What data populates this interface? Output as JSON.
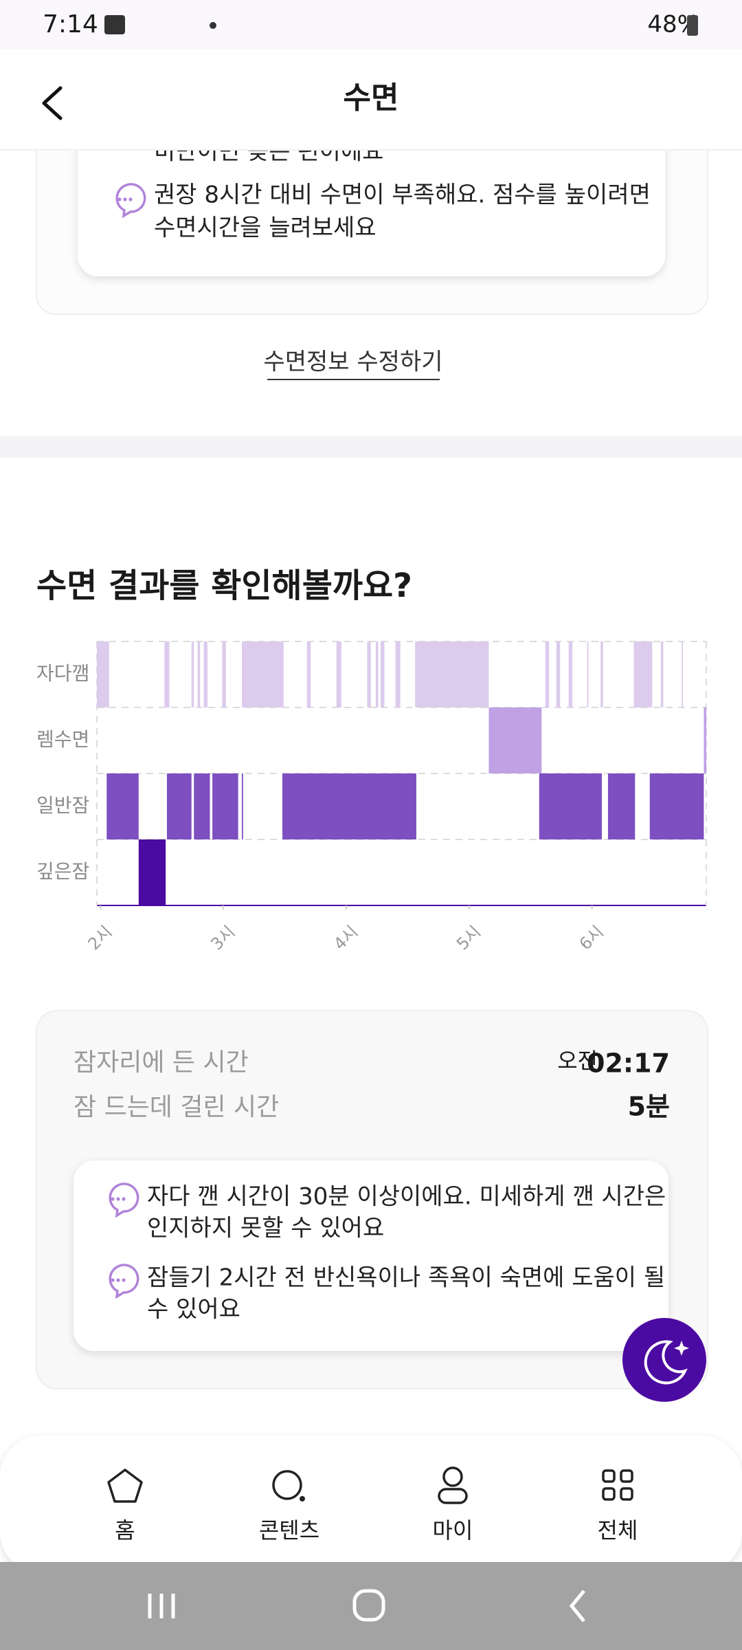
{
  "status_bar": {
    "time": "7:14",
    "battery": "48%"
  },
  "header": {
    "title": "수면"
  },
  "top_card": {
    "cut_text": "비만이면 늦은 편이에요",
    "tip": {
      "lines": [
        "권장 8시간 대비 수면이 부족해요. 점수를 높이려면",
        "수면시간을 늘려보세요"
      ]
    }
  },
  "edit_link": "수면정보 수정하기",
  "section_title": "수면 결과를 확인해볼까요?",
  "chart_data": {
    "type": "hypnogram",
    "xlim": [
      1.97,
      6.93
    ],
    "xticks": [
      {
        "value": 2,
        "label": "2시"
      },
      {
        "value": 3,
        "label": "3시"
      },
      {
        "value": 4,
        "label": "4시"
      },
      {
        "value": 5,
        "label": "5시"
      },
      {
        "value": 6,
        "label": "6시"
      }
    ],
    "series": [
      {
        "name": "자다깸",
        "color": "#dccbec",
        "segments": [
          [
            1.97,
            2.07
          ],
          [
            2.52,
            2.56
          ],
          [
            2.74,
            2.76
          ],
          [
            2.79,
            2.81
          ],
          [
            2.84,
            2.87
          ],
          [
            2.99,
            3.02
          ],
          [
            3.15,
            3.49
          ],
          [
            3.68,
            3.71
          ],
          [
            3.92,
            3.96
          ],
          [
            4.17,
            4.2
          ],
          [
            4.24,
            4.26
          ],
          [
            4.28,
            4.31
          ],
          [
            4.4,
            4.44
          ],
          [
            4.56,
            5.16
          ],
          [
            5.62,
            5.65
          ],
          [
            5.71,
            5.74
          ],
          [
            5.81,
            5.84
          ],
          [
            5.96,
            5.97
          ],
          [
            6.07,
            6.09
          ],
          [
            6.34,
            6.49
          ],
          [
            6.56,
            6.58
          ],
          [
            6.73,
            6.74
          ]
        ]
      },
      {
        "name": "렘수면",
        "color": "#bfa1e4",
        "segments": [
          [
            5.16,
            5.59
          ],
          [
            6.91,
            6.93
          ]
        ]
      },
      {
        "name": "일반잠",
        "color": "#7d4fc1",
        "segments": [
          [
            2.05,
            2.31
          ],
          [
            2.54,
            2.74
          ],
          [
            2.76,
            2.89
          ],
          [
            2.91,
            3.12
          ],
          [
            3.15,
            3.16
          ],
          [
            3.48,
            4.57
          ],
          [
            5.57,
            6.08
          ],
          [
            6.13,
            6.35
          ],
          [
            6.47,
            6.91
          ]
        ]
      },
      {
        "name": "깊은잠",
        "color": "#4b0aa1",
        "segments": [
          [
            2.31,
            2.53
          ]
        ]
      }
    ]
  },
  "info": {
    "rows": [
      {
        "label": "잠자리에 든 시간",
        "prefix": "오전",
        "value": "02:17"
      },
      {
        "label": "잠 드는데 걸린 시간",
        "value": "5분"
      }
    ],
    "tips": [
      {
        "lines": [
          "자다 깬 시간이 30분 이상이에요. 미세하게 깬 시간은",
          "인지하지 못할 수 있어요"
        ]
      },
      {
        "lines": [
          "잠들기 2시간 전 반신욕이나 족욕이 숙면에 도움이 될",
          "수 있어요"
        ]
      }
    ]
  },
  "nav": [
    "홈",
    "콘텐츠",
    "마이",
    "전체"
  ]
}
